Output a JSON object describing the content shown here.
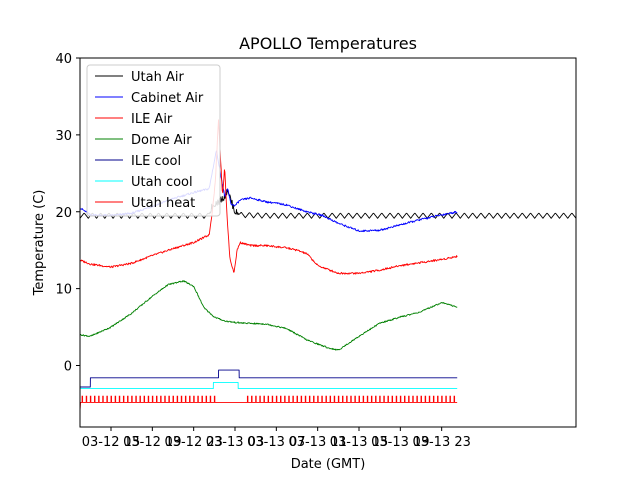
{
  "chart_data": {
    "type": "line",
    "title": "APOLLO Temperatures",
    "xlabel": "Date (GMT)",
    "ylabel": "Temperature (C)",
    "xlim": [
      12,
      60
    ],
    "ylim": [
      -8,
      40
    ],
    "x_unit": "hours since 03-12 00:00 GMT",
    "x_ticks": [
      {
        "x": 15,
        "label": "03-12 15"
      },
      {
        "x": 19,
        "label": "03-12 19"
      },
      {
        "x": 23,
        "label": "03-12 23"
      },
      {
        "x": 27,
        "label": "03-13 03"
      },
      {
        "x": 31,
        "label": "03-13 07"
      },
      {
        "x": 35,
        "label": "03-13 11"
      },
      {
        "x": 39,
        "label": "03-13 15"
      },
      {
        "x": 43,
        "label": "03-13 19"
      },
      {
        "x": 47,
        "label": "03-13 23"
      }
    ],
    "y_ticks": [
      0,
      10,
      20,
      30,
      40
    ],
    "legend_position": "top-left",
    "series": [
      {
        "name": "Utah Air",
        "color": "#000000",
        "x": [
          12,
          24.5,
          24.7,
          25.0,
          25.6,
          26.0,
          26.3,
          26.6,
          27.0,
          27.5,
          30,
          35,
          40,
          45,
          50,
          60
        ],
        "y": [
          19.5,
          19.5,
          20.5,
          21.0,
          21.5,
          22.0,
          23.0,
          21.5,
          20.0,
          19.6,
          19.5,
          19.5,
          19.5,
          19.5,
          19.5,
          19.5
        ]
      },
      {
        "name": "Cabinet Air",
        "color": "#0000ff",
        "x": [
          12,
          13,
          15,
          17,
          19,
          21,
          23,
          24.5,
          25.2,
          25.6,
          26.0,
          26.3,
          26.6,
          27.0,
          27.5,
          28.5,
          30,
          32,
          33,
          34,
          35.5,
          37,
          39,
          41,
          43,
          45,
          47,
          48.5
        ],
        "y": [
          20.5,
          19.6,
          19.5,
          19.8,
          20.7,
          21.7,
          22.5,
          23.0,
          28.0,
          25.0,
          22.0,
          23.0,
          21.0,
          20.8,
          21.5,
          21.8,
          21.3,
          20.9,
          20.4,
          20.0,
          19.5,
          18.5,
          17.5,
          17.6,
          18.3,
          19.0,
          19.6,
          20.0
        ]
      },
      {
        "name": "ILE Air",
        "color": "#ff0000",
        "x": [
          12,
          13,
          15,
          17,
          19,
          21,
          23,
          24.5,
          24.8,
          25.1,
          25.4,
          25.8,
          26.0,
          26.2,
          26.5,
          26.9,
          27.2,
          27.5,
          28.5,
          30,
          32,
          33,
          34,
          35,
          37,
          39,
          41,
          43,
          45,
          47,
          48.5
        ],
        "y": [
          13.7,
          13.2,
          12.8,
          13.3,
          14.3,
          15.2,
          16.0,
          17.0,
          20.0,
          24.0,
          32.0,
          22.0,
          26.0,
          20.0,
          14.0,
          12.0,
          15.0,
          16.0,
          15.6,
          15.6,
          15.3,
          15.0,
          14.5,
          13.0,
          12.0,
          12.0,
          12.4,
          13.0,
          13.4,
          13.8,
          14.2
        ]
      },
      {
        "name": "Dome Air",
        "color": "#008000",
        "x": [
          12,
          13,
          15,
          17,
          19,
          20.5,
          22,
          23,
          24,
          25,
          26,
          27,
          28,
          30,
          32,
          34,
          35,
          36,
          37,
          39,
          41,
          43,
          45,
          47,
          48.5
        ],
        "y": [
          4.0,
          3.8,
          5.0,
          6.8,
          9.0,
          10.5,
          11.0,
          10.3,
          7.5,
          6.3,
          5.8,
          5.6,
          5.5,
          5.4,
          4.8,
          3.3,
          2.8,
          2.3,
          2.0,
          3.8,
          5.5,
          6.3,
          7.0,
          8.2,
          7.6
        ]
      },
      {
        "name": "ILE cool",
        "color": "#00008b",
        "x": [
          12,
          13,
          13.01,
          25.4,
          25.41,
          27.4,
          27.41,
          48.5
        ],
        "y": [
          -2.8,
          -2.8,
          -1.6,
          -1.6,
          -0.6,
          -0.6,
          -1.6,
          -1.6
        ]
      },
      {
        "name": "Utah cool",
        "color": "#00ffff",
        "x": [
          12,
          24.9,
          24.91,
          27.3,
          27.31,
          48.5
        ],
        "y": [
          -3.0,
          -3.0,
          -2.2,
          -2.2,
          -3.0,
          -3.0
        ]
      },
      {
        "name": "Utah heat",
        "color": "#ff0000",
        "x": [
          12,
          48.5
        ],
        "y": [
          -4.8,
          -4.8
        ],
        "pulse_top": -4.0,
        "pulse_gaps": [
          [
            25.0,
            28.0
          ]
        ]
      }
    ]
  }
}
